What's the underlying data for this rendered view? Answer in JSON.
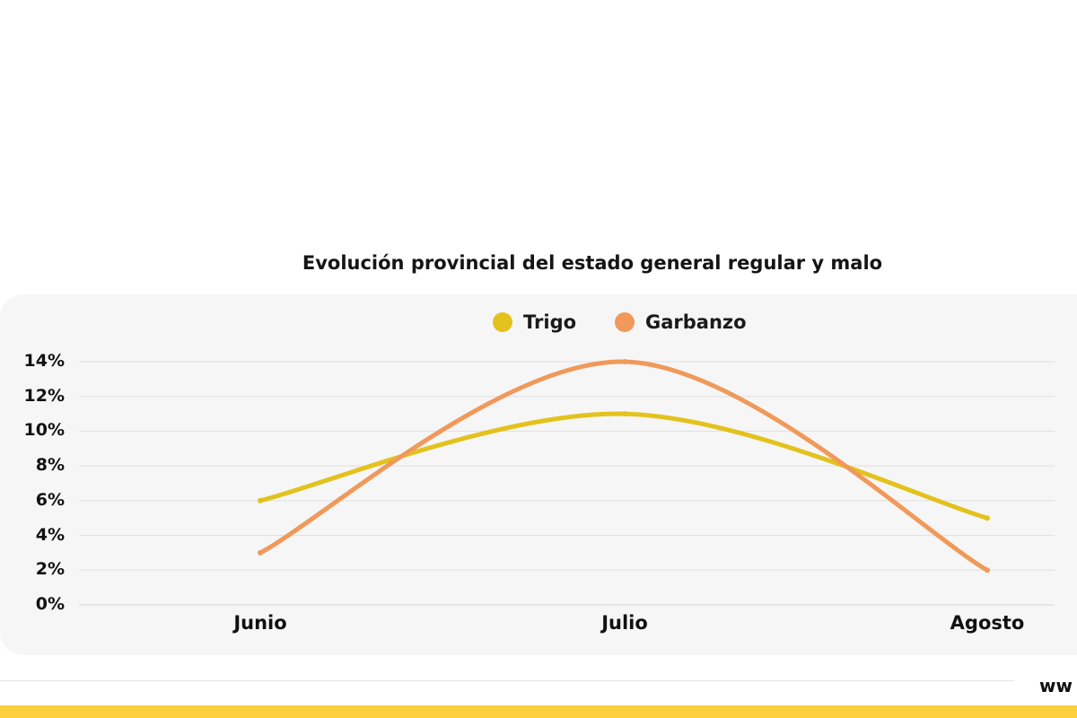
{
  "chart_data": {
    "type": "line",
    "title": "Evolución provincial del estado general regular y malo",
    "categories": [
      "Junio",
      "Julio",
      "Agosto"
    ],
    "series": [
      {
        "name": "Trigo",
        "values": [
          6,
          11,
          5
        ],
        "color": "#e3c21d"
      },
      {
        "name": "Garbanzo",
        "values": [
          3,
          14,
          2
        ],
        "color": "#f0995a"
      }
    ],
    "yticks": [
      "0%",
      "2%",
      "4%",
      "6%",
      "8%",
      "10%",
      "12%",
      "14%"
    ],
    "ylim": [
      0,
      14
    ],
    "grid": true,
    "legend": "top-center",
    "smooth": true
  },
  "footer": {
    "text": "ww"
  },
  "colors": {
    "accent_bar": "#fccf3e",
    "panel": "#f6f6f6",
    "grid": "#e0e0e0"
  }
}
